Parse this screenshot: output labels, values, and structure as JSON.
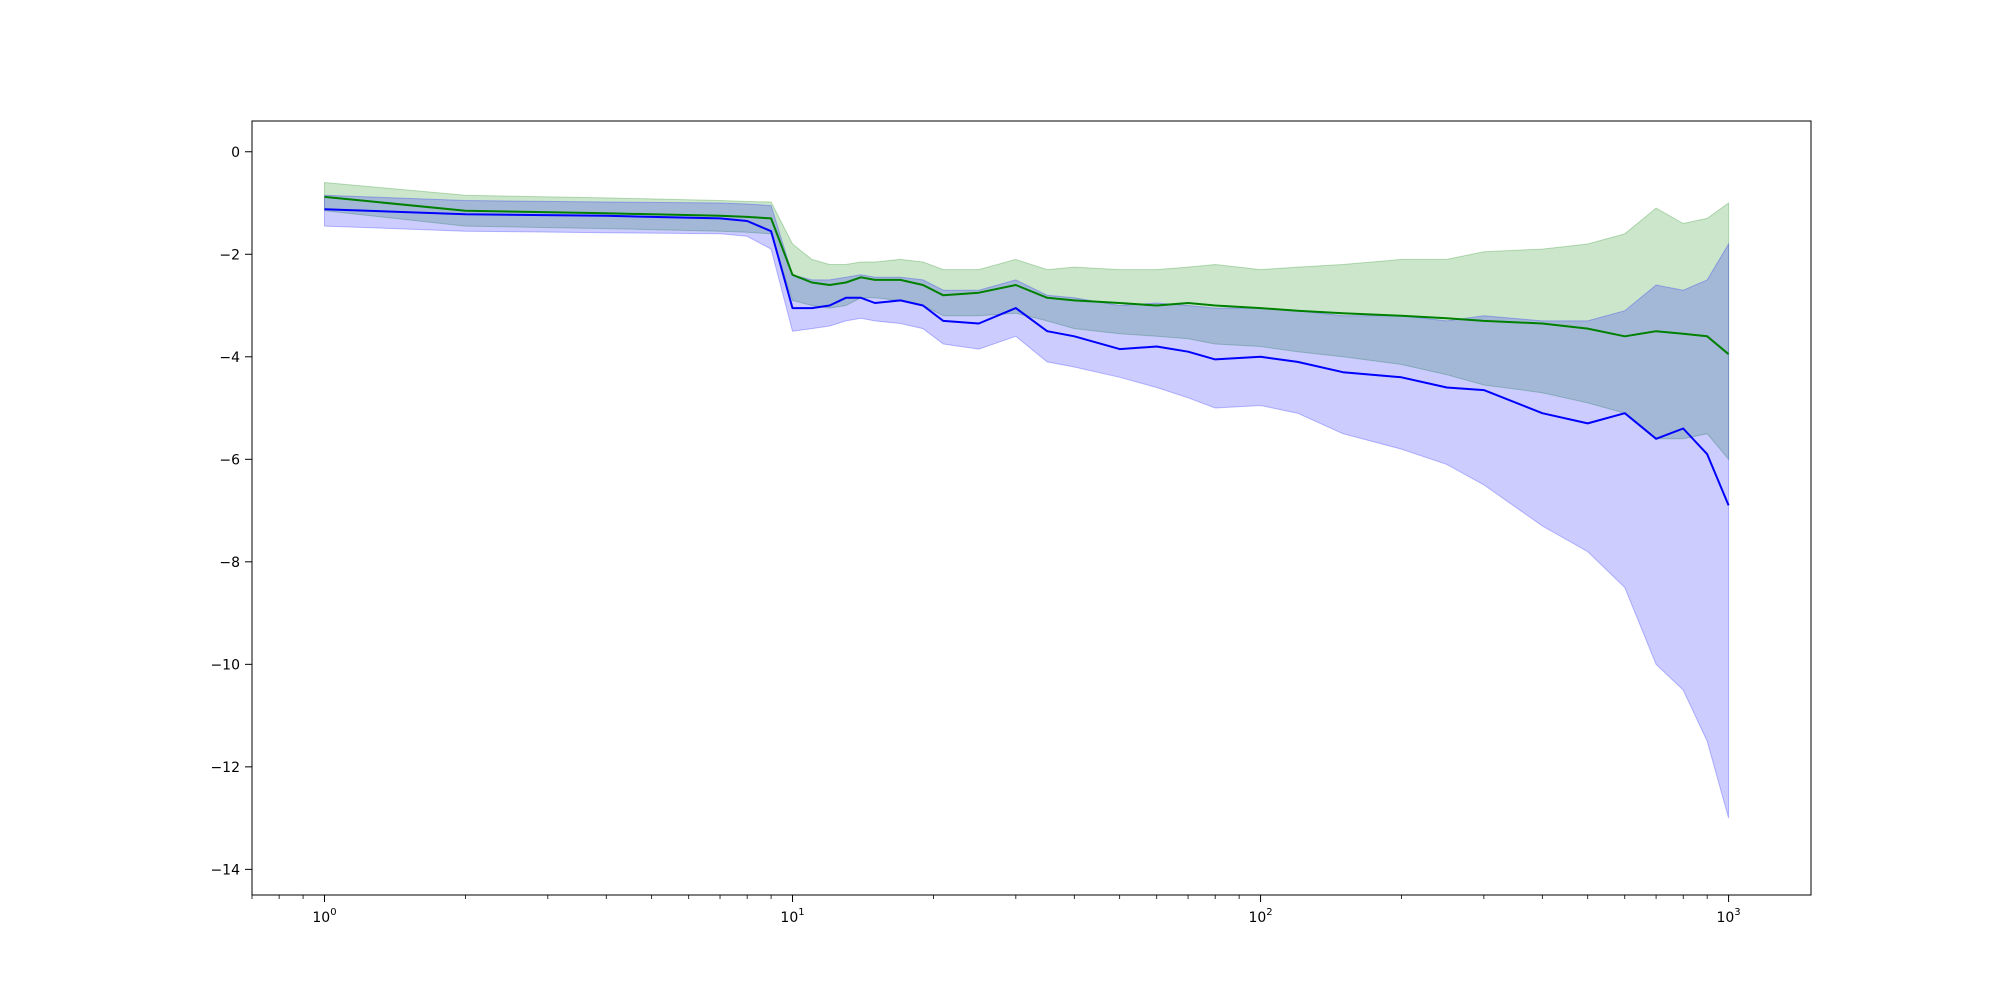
{
  "chart_data": {
    "type": "line",
    "title": "",
    "xlabel": "",
    "ylabel": "",
    "xscale": "log",
    "xlim": [
      0.7,
      1500
    ],
    "ylim": [
      -14.5,
      0.6
    ],
    "grid": false,
    "legend": "none",
    "x_ticks": [
      {
        "value": 1,
        "base": "10",
        "exp": "0"
      },
      {
        "value": 10,
        "base": "10",
        "exp": "1"
      },
      {
        "value": 100,
        "base": "10",
        "exp": "2"
      },
      {
        "value": 1000,
        "base": "10",
        "exp": "3"
      }
    ],
    "y_ticks": [
      {
        "value": 0,
        "label": "0"
      },
      {
        "value": -2,
        "label": "−2"
      },
      {
        "value": -4,
        "label": "−4"
      },
      {
        "value": -6,
        "label": "−6"
      },
      {
        "value": -8,
        "label": "−8"
      },
      {
        "value": -10,
        "label": "−10"
      },
      {
        "value": -12,
        "label": "−12"
      },
      {
        "value": -14,
        "label": "−14"
      }
    ],
    "series": [
      {
        "color": "#008000",
        "band_color": "#008000",
        "band_opacity": 0.2,
        "x": [
          1,
          2,
          4,
          7,
          8,
          9,
          10,
          11,
          12,
          13,
          14,
          15,
          17,
          19,
          21,
          25,
          30,
          35,
          40,
          50,
          60,
          70,
          80,
          100,
          120,
          150,
          200,
          250,
          300,
          400,
          500,
          600,
          700,
          800,
          900,
          1000
        ],
        "mean": [
          -0.88,
          -1.15,
          -1.2,
          -1.25,
          -1.27,
          -1.3,
          -2.4,
          -2.55,
          -2.6,
          -2.55,
          -2.45,
          -2.5,
          -2.5,
          -2.6,
          -2.8,
          -2.75,
          -2.6,
          -2.85,
          -2.9,
          -2.95,
          -3.0,
          -2.95,
          -3.0,
          -3.05,
          -3.1,
          -3.15,
          -3.2,
          -3.25,
          -3.3,
          -3.35,
          -3.45,
          -3.6,
          -3.5,
          -3.55,
          -3.6,
          -3.95
        ],
        "upper": [
          -0.6,
          -0.85,
          -0.9,
          -0.95,
          -0.97,
          -0.98,
          -1.8,
          -2.1,
          -2.2,
          -2.2,
          -2.15,
          -2.15,
          -2.1,
          -2.15,
          -2.3,
          -2.3,
          -2.1,
          -2.3,
          -2.25,
          -2.3,
          -2.3,
          -2.25,
          -2.2,
          -2.3,
          -2.25,
          -2.2,
          -2.1,
          -2.1,
          -1.95,
          -1.9,
          -1.8,
          -1.6,
          -1.1,
          -1.4,
          -1.3,
          -1.0
        ],
        "lower": [
          -1.15,
          -1.45,
          -1.5,
          -1.55,
          -1.57,
          -1.6,
          -2.9,
          -3.0,
          -3.05,
          -3.0,
          -2.85,
          -2.85,
          -2.9,
          -3.0,
          -3.2,
          -3.2,
          -3.15,
          -3.3,
          -3.45,
          -3.55,
          -3.6,
          -3.65,
          -3.75,
          -3.8,
          -3.9,
          -4.0,
          -4.15,
          -4.35,
          -4.55,
          -4.7,
          -4.9,
          -5.1,
          -5.6,
          -5.6,
          -5.5,
          -6.0
        ]
      },
      {
        "color": "#0000ff",
        "band_color": "#0000ff",
        "band_opacity": 0.2,
        "x": [
          1,
          2,
          4,
          7,
          8,
          9,
          10,
          11,
          12,
          13,
          14,
          15,
          17,
          19,
          21,
          25,
          30,
          35,
          40,
          50,
          60,
          70,
          80,
          100,
          120,
          150,
          200,
          250,
          300,
          400,
          500,
          600,
          700,
          800,
          900,
          1000
        ],
        "mean": [
          -1.12,
          -1.22,
          -1.25,
          -1.3,
          -1.35,
          -1.55,
          -3.05,
          -3.05,
          -3.0,
          -2.85,
          -2.85,
          -2.95,
          -2.9,
          -3.0,
          -3.3,
          -3.35,
          -3.05,
          -3.5,
          -3.6,
          -3.85,
          -3.8,
          -3.9,
          -4.05,
          -4.0,
          -4.1,
          -4.3,
          -4.4,
          -4.6,
          -4.65,
          -5.1,
          -5.3,
          -5.1,
          -5.6,
          -5.4,
          -5.9,
          -6.9
        ],
        "upper": [
          -0.85,
          -0.95,
          -0.98,
          -1.0,
          -1.02,
          -1.05,
          -2.4,
          -2.5,
          -2.5,
          -2.45,
          -2.4,
          -2.45,
          -2.45,
          -2.5,
          -2.7,
          -2.7,
          -2.5,
          -2.8,
          -2.85,
          -3.0,
          -2.95,
          -3.0,
          -3.05,
          -3.05,
          -3.1,
          -3.2,
          -3.2,
          -3.3,
          -3.2,
          -3.3,
          -3.3,
          -3.1,
          -2.6,
          -2.7,
          -2.5,
          -1.8
        ],
        "lower": [
          -1.45,
          -1.55,
          -1.58,
          -1.6,
          -1.65,
          -1.9,
          -3.5,
          -3.45,
          -3.4,
          -3.3,
          -3.25,
          -3.3,
          -3.35,
          -3.45,
          -3.75,
          -3.85,
          -3.6,
          -4.1,
          -4.2,
          -4.4,
          -4.6,
          -4.8,
          -5.0,
          -4.95,
          -5.1,
          -5.5,
          -5.8,
          -6.1,
          -6.5,
          -7.3,
          -7.8,
          -8.5,
          -10.0,
          -10.5,
          -11.5,
          -13.0
        ]
      }
    ]
  }
}
